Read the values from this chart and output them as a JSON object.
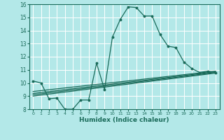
{
  "xlabel": "Humidex (Indice chaleur)",
  "xlim": [
    -0.5,
    23.5
  ],
  "ylim": [
    8,
    16
  ],
  "yticks": [
    8,
    9,
    10,
    11,
    12,
    13,
    14,
    15,
    16
  ],
  "xticks": [
    0,
    1,
    2,
    3,
    4,
    5,
    6,
    7,
    8,
    9,
    10,
    11,
    12,
    13,
    14,
    15,
    16,
    17,
    18,
    19,
    20,
    21,
    22,
    23
  ],
  "bg_color": "#b3e8e8",
  "line_color": "#1a6b5a",
  "grid_color": "#ffffff",
  "curves": [
    {
      "x": [
        0,
        1,
        2,
        3,
        4,
        5,
        6,
        7,
        8,
        9,
        10,
        11,
        12,
        13,
        14,
        15,
        16,
        17,
        18,
        19,
        20,
        21,
        22,
        23
      ],
      "y": [
        10.15,
        10.0,
        8.8,
        8.85,
        8.0,
        8.0,
        8.7,
        8.7,
        11.5,
        9.5,
        13.5,
        14.85,
        15.8,
        15.75,
        15.1,
        15.1,
        13.7,
        12.8,
        12.7,
        11.6,
        11.1,
        10.8,
        10.9,
        10.8
      ]
    },
    {
      "x": [
        0,
        23
      ],
      "y": [
        9.0,
        10.75
      ]
    },
    {
      "x": [
        0,
        23
      ],
      "y": [
        9.1,
        10.8
      ]
    },
    {
      "x": [
        0,
        23
      ],
      "y": [
        9.2,
        10.85
      ]
    },
    {
      "x": [
        0,
        23
      ],
      "y": [
        9.35,
        10.9
      ]
    }
  ]
}
